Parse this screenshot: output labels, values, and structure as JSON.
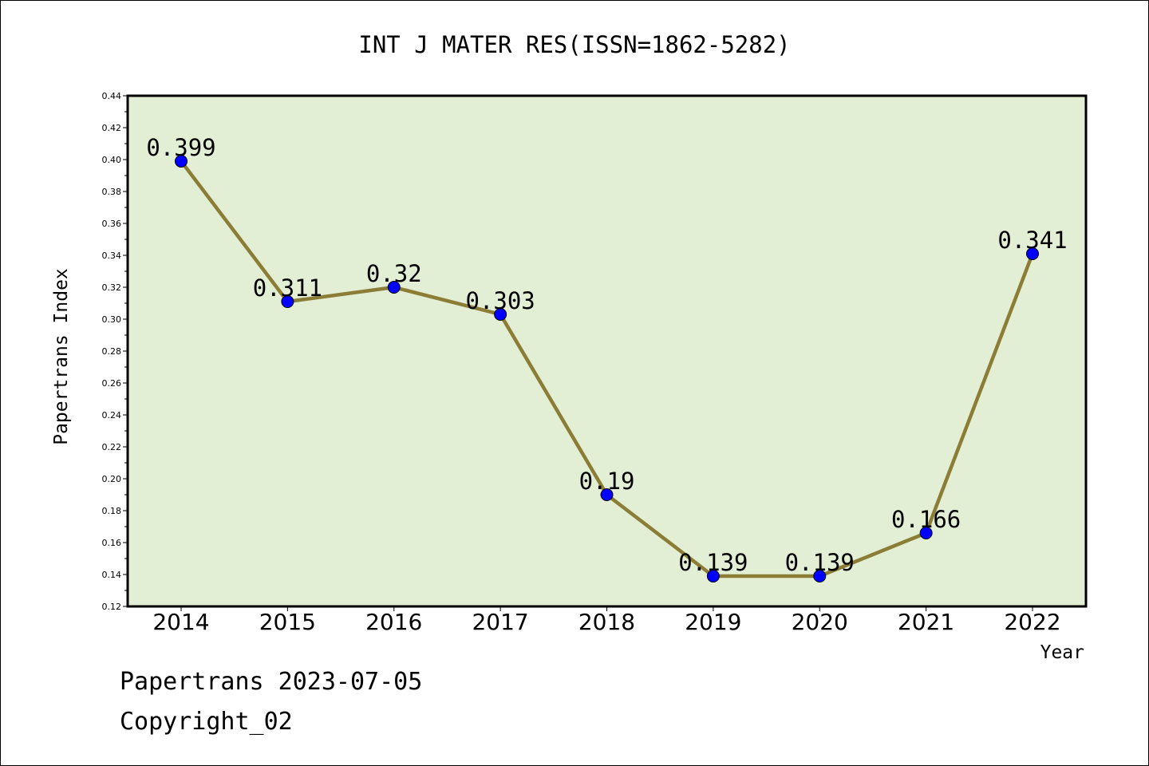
{
  "chart_data": {
    "type": "line",
    "title": "INT J MATER RES(ISSN=1862-5282)",
    "xlabel": "Year",
    "ylabel": "Papertrans Index",
    "categories": [
      "2014",
      "2015",
      "2016",
      "2017",
      "2018",
      "2019",
      "2020",
      "2021",
      "2022"
    ],
    "series": [
      {
        "values": [
          0.399,
          0.311,
          0.32,
          0.303,
          0.19,
          0.139,
          0.139,
          0.166,
          0.341
        ]
      }
    ],
    "data_labels": [
      "0.399",
      "0.311",
      "0.32",
      "0.303",
      "0.19",
      "0.139",
      "0.139",
      "0.166",
      "0.341"
    ],
    "ylim": [
      0.12,
      0.44
    ],
    "yticks": [
      "0.12",
      "0.14",
      "0.16",
      "0.18",
      "0.20",
      "0.22",
      "0.24",
      "0.26",
      "0.28",
      "0.30",
      "0.32",
      "0.34",
      "0.36",
      "0.38",
      "0.40",
      "0.42",
      "0.44"
    ],
    "grid": false,
    "colors": {
      "plot_background": "#e2efd5",
      "line": "#8b7d35",
      "marker": "#0000ff"
    }
  },
  "footer": {
    "line1": "Papertrans 2023-07-05",
    "line2": "Copyright_02"
  }
}
